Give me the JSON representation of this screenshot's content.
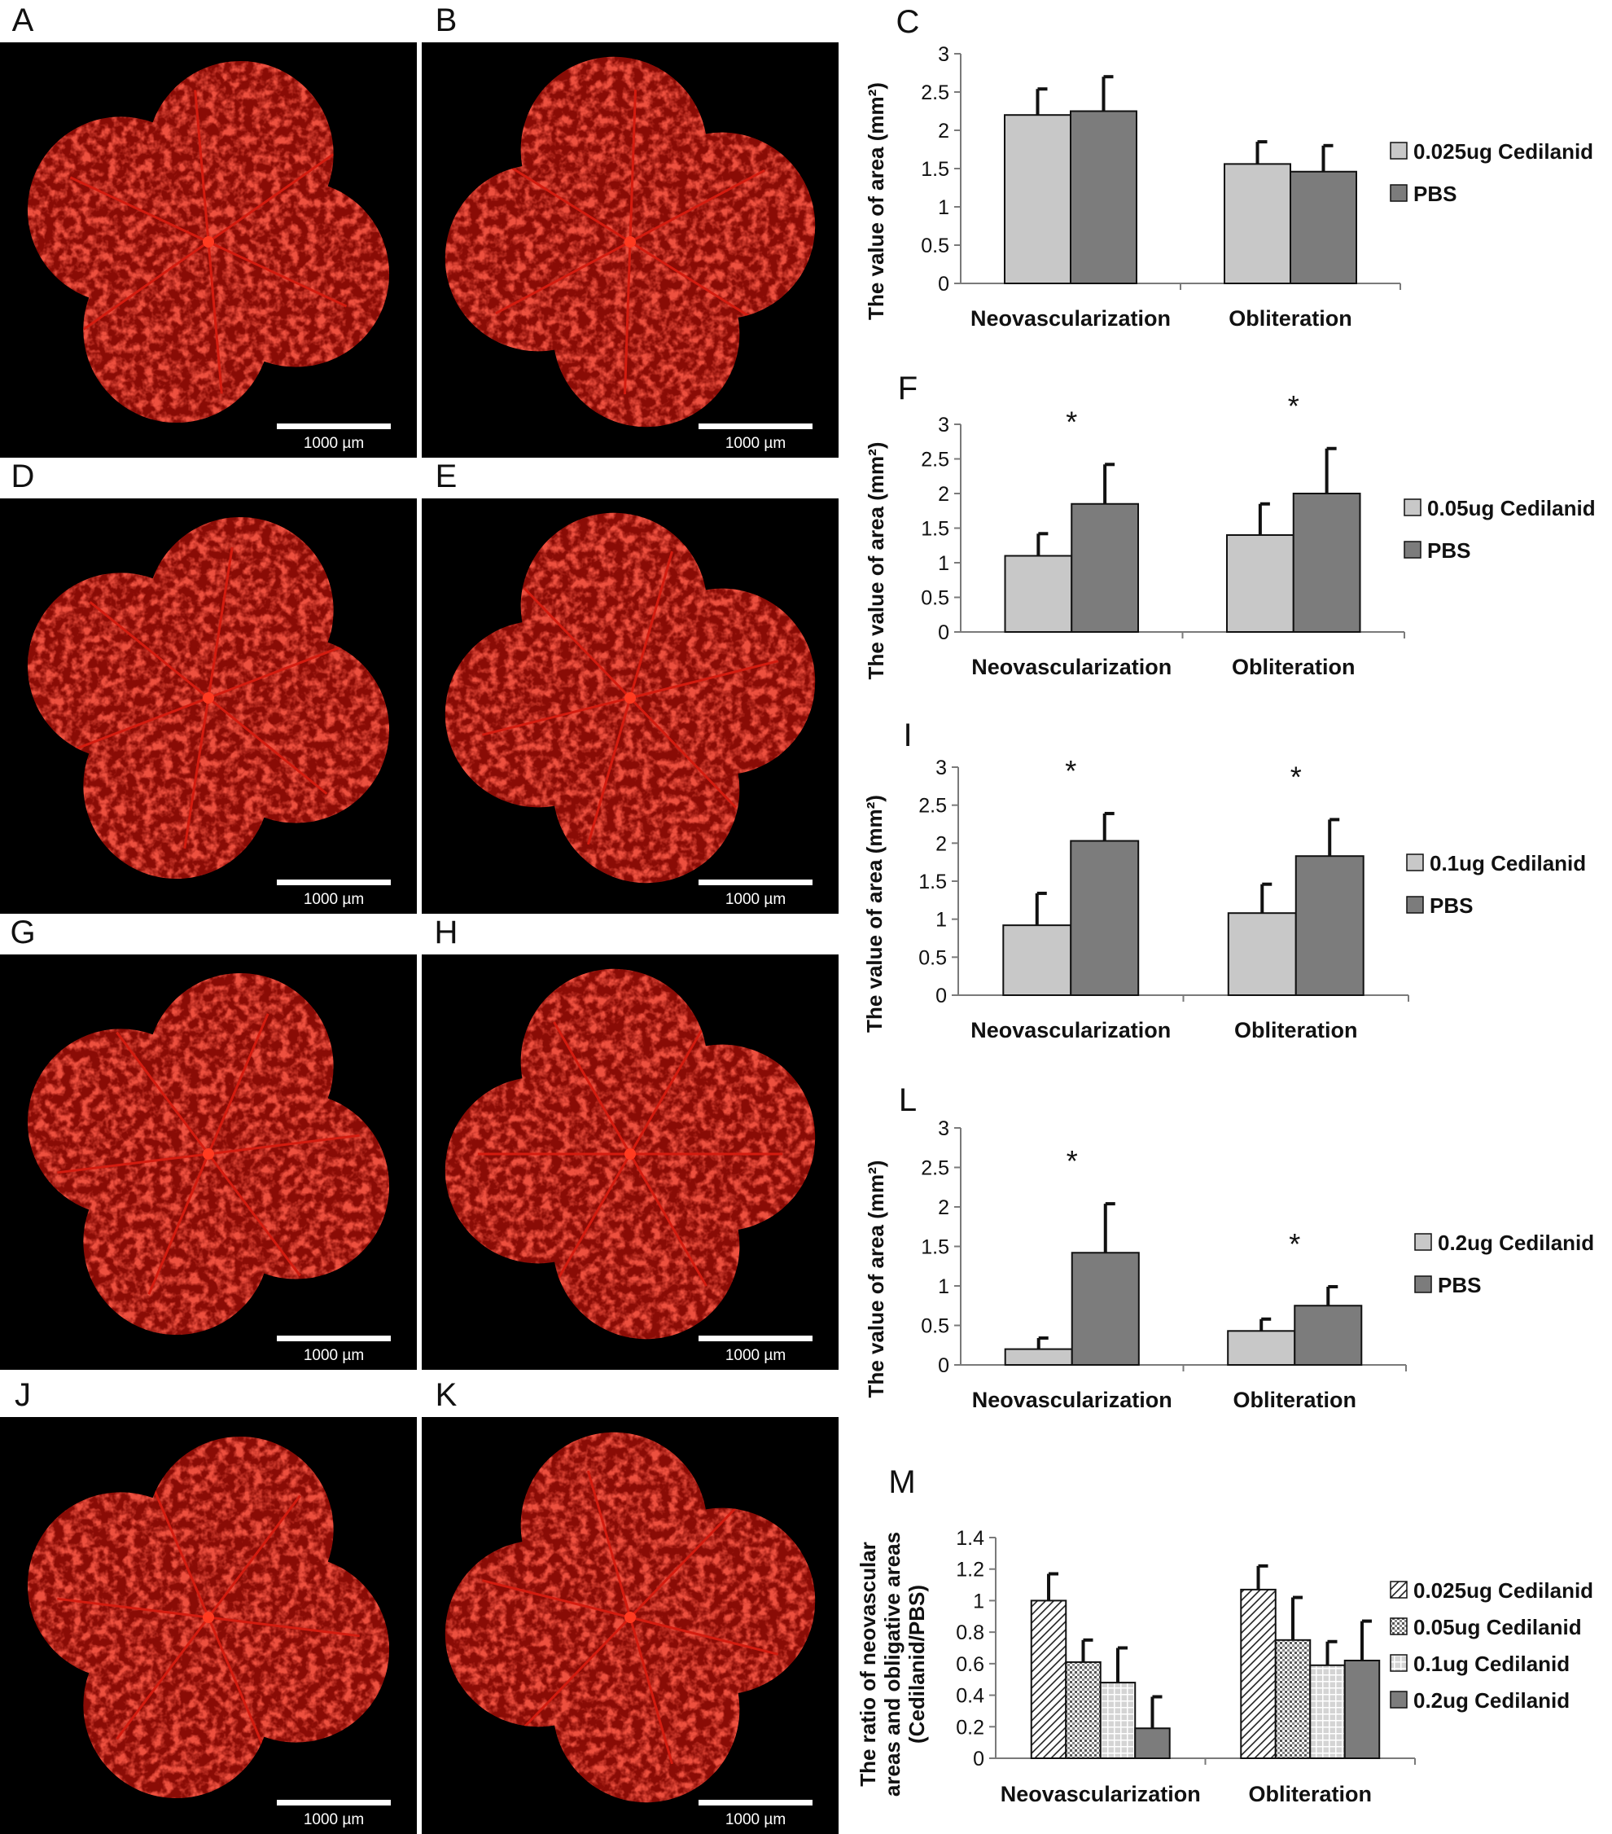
{
  "micrographs": [
    {
      "letter": "A",
      "scale_label": "1000 µm"
    },
    {
      "letter": "B",
      "scale_label": "1000 µm"
    },
    {
      "letter": "D",
      "scale_label": "1000 µm"
    },
    {
      "letter": "E",
      "scale_label": "1000 µm"
    },
    {
      "letter": "G",
      "scale_label": "1000 µm"
    },
    {
      "letter": "H",
      "scale_label": "1000 µm"
    },
    {
      "letter": "J",
      "scale_label": "1000 µm"
    },
    {
      "letter": "K",
      "scale_label": "1000 µm"
    }
  ],
  "colors": {
    "background_dark": "#000000",
    "vessel_red": "#d41c10",
    "bar_light": "#c8c8c8",
    "bar_dark": "#7c7c7c",
    "axis": "#7a7a7a"
  },
  "chart_data": [
    {
      "letter": "C",
      "type": "bar",
      "ylabel": "The value of area (mm²)",
      "ylim": [
        0,
        3
      ],
      "yticks": [
        "0",
        "0.5",
        "1",
        "1.5",
        "2",
        "2.5",
        "3"
      ],
      "categories": [
        "Neovascularization",
        "Obliteration"
      ],
      "series": [
        {
          "name": "0.025ug Cedilanid",
          "values": [
            2.2,
            1.56
          ],
          "errors": [
            0.34,
            0.29
          ],
          "style": "light"
        },
        {
          "name": "PBS",
          "values": [
            2.25,
            1.46
          ],
          "errors": [
            0.45,
            0.34
          ],
          "style": "dark"
        }
      ],
      "significance": [
        "",
        ""
      ]
    },
    {
      "letter": "F",
      "type": "bar",
      "ylabel": "The value of area (mm²)",
      "ylim": [
        0,
        3
      ],
      "yticks": [
        "0",
        "0.5",
        "1",
        "1.5",
        "2",
        "2.5",
        "3"
      ],
      "categories": [
        "Neovascularization",
        "Obliteration"
      ],
      "series": [
        {
          "name": "0.05ug Cedilanid",
          "values": [
            1.1,
            1.4
          ],
          "errors": [
            0.32,
            0.45
          ],
          "style": "light"
        },
        {
          "name": "PBS",
          "values": [
            1.85,
            2.0
          ],
          "errors": [
            0.57,
            0.65
          ],
          "style": "dark"
        }
      ],
      "significance": [
        "*",
        "*"
      ]
    },
    {
      "letter": "I",
      "type": "bar",
      "ylabel": "The value of area (mm²)",
      "ylim": [
        0,
        3
      ],
      "yticks": [
        "0",
        "0.5",
        "1",
        "1.5",
        "2",
        "2.5",
        "3"
      ],
      "categories": [
        "Neovascularization",
        "Obliteration"
      ],
      "series": [
        {
          "name": "0.1ug Cedilanid",
          "values": [
            0.92,
            1.08
          ],
          "errors": [
            0.42,
            0.38
          ],
          "style": "light"
        },
        {
          "name": "PBS",
          "values": [
            2.03,
            1.83
          ],
          "errors": [
            0.36,
            0.48
          ],
          "style": "dark"
        }
      ],
      "significance": [
        "*",
        "*"
      ]
    },
    {
      "letter": "L",
      "type": "bar",
      "ylabel": "The value of area (mm²)",
      "ylim": [
        0,
        3
      ],
      "yticks": [
        "0",
        "0.5",
        "1",
        "1.5",
        "2",
        "2.5",
        "3"
      ],
      "categories": [
        "Neovascularization",
        "Obliteration"
      ],
      "series": [
        {
          "name": "0.2ug Cedilanid",
          "values": [
            0.2,
            0.43
          ],
          "errors": [
            0.14,
            0.15
          ],
          "style": "light"
        },
        {
          "name": "PBS",
          "values": [
            1.42,
            0.75
          ],
          "errors": [
            0.62,
            0.24
          ],
          "style": "dark"
        }
      ],
      "significance": [
        "*",
        "*"
      ]
    },
    {
      "letter": "M",
      "type": "bar",
      "ylabel": "The ratio of neovascular areas and obligative areas (Cedilanid/PBS)",
      "ylabel_lines": [
        "The ratio of neovascular",
        "areas and obligative areas",
        "(Cedilanid/PBS)"
      ],
      "ylim": [
        0,
        1.4
      ],
      "yticks": [
        "0",
        "0.2",
        "0.4",
        "0.6",
        "0.8",
        "1",
        "1.2",
        "1.4"
      ],
      "categories": [
        "Neovascularization",
        "Obliteration"
      ],
      "series": [
        {
          "name": "0.025ug Cedilanid",
          "values": [
            1.0,
            1.07
          ],
          "errors": [
            0.17,
            0.15
          ],
          "style": "hatch"
        },
        {
          "name": "0.05ug Cedilanid",
          "values": [
            0.61,
            0.75
          ],
          "errors": [
            0.14,
            0.27
          ],
          "style": "dots"
        },
        {
          "name": "0.1ug Cedilanid",
          "values": [
            0.48,
            0.59
          ],
          "errors": [
            0.22,
            0.15
          ],
          "style": "grid"
        },
        {
          "name": "0.2ug Cedilanid",
          "values": [
            0.19,
            0.62
          ],
          "errors": [
            0.2,
            0.25
          ],
          "style": "dark"
        }
      ],
      "significance": [
        "",
        ""
      ]
    }
  ]
}
